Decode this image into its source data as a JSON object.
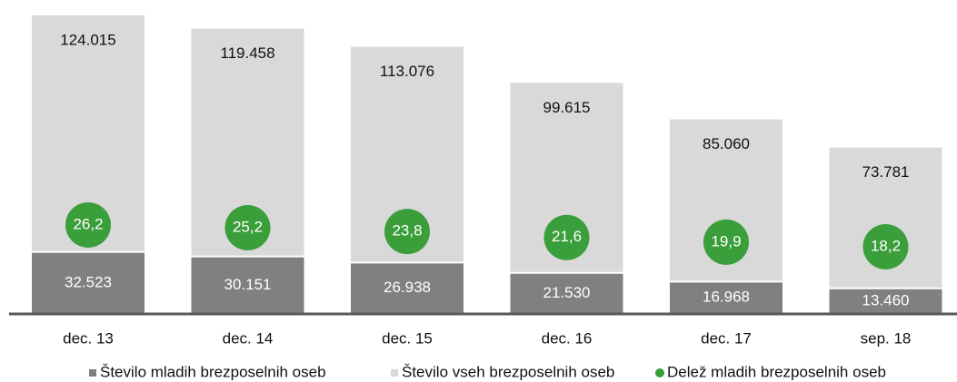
{
  "chart_data": {
    "type": "bar",
    "stacked": true,
    "categories": [
      "dec. 13",
      "dec. 14",
      "dec. 15",
      "dec. 16",
      "dec. 17",
      "sep. 18"
    ],
    "series": [
      {
        "name": "Število mladih brezposelnih oseb",
        "type": "bar",
        "color": "#808080",
        "values": [
          32523,
          30151,
          26938,
          21530,
          16968,
          13460
        ],
        "value_labels": [
          "32.523",
          "30.151",
          "26.938",
          "21.530",
          "16.968",
          "13.460"
        ]
      },
      {
        "name": "Število vseh brezposelnih oseb",
        "type": "bar",
        "color": "#d9d9d9",
        "values": [
          124015,
          119458,
          113076,
          99615,
          85060,
          73781
        ],
        "value_labels": [
          "124.015",
          "119.458",
          "113.076",
          "99.615",
          "85.060",
          "73.781"
        ]
      },
      {
        "name": "Delež mladih brezposelnih oseb",
        "type": "scatter",
        "axis": "y2",
        "color": "#3a9e3a",
        "values": [
          26.2,
          25.2,
          23.8,
          21.6,
          19.9,
          18.2
        ],
        "value_labels": [
          "26,2",
          "25,2",
          "23,8",
          "21,6",
          "19,9",
          "18,2"
        ]
      }
    ],
    "ylim": [
      0,
      164600
    ],
    "y2lim": [
      -6.5,
      108.9
    ],
    "legend": "bottom"
  }
}
